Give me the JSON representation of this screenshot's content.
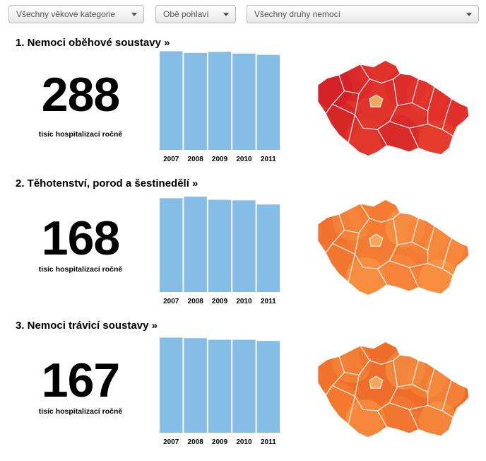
{
  "filters": {
    "age": "Všechny věkové kategorie",
    "sex": "Obě pohlaví",
    "disease": "Všechny druhy nemocí"
  },
  "colors": {
    "bar": "#85bde6",
    "map1": "#d42228",
    "map2": "#f47b32",
    "map3": "#f6893c",
    "border": "#ffffff",
    "capital": "#f6a75b"
  },
  "chart_data": [
    {
      "type": "bar",
      "title": "1. Nemoci oběhové soustavy »",
      "headline_value": "288",
      "unit_label": "tisíc hospitalizací ročně",
      "categories": [
        "2007",
        "2008",
        "2009",
        "2010",
        "2011"
      ],
      "values": [
        299,
        294,
        297,
        292,
        288
      ],
      "ylim": [
        0,
        300
      ]
    },
    {
      "type": "bar",
      "title": "2. Těhotenství, porod a šestinedělí »",
      "headline_value": "168",
      "unit_label": "tisíc hospitalizací ročně",
      "categories": [
        "2007",
        "2008",
        "2009",
        "2010",
        "2011"
      ],
      "values": [
        180,
        183,
        177,
        176,
        168
      ],
      "ylim": [
        0,
        190
      ]
    },
    {
      "type": "bar",
      "title": "3. Nemoci trávicí soustavy »",
      "headline_value": "167",
      "unit_label": "tisíc hospitalizací ročně",
      "categories": [
        "2007",
        "2008",
        "2009",
        "2010",
        "2011"
      ],
      "values": [
        173,
        172,
        169,
        169,
        167
      ],
      "ylim": [
        0,
        180
      ]
    }
  ]
}
